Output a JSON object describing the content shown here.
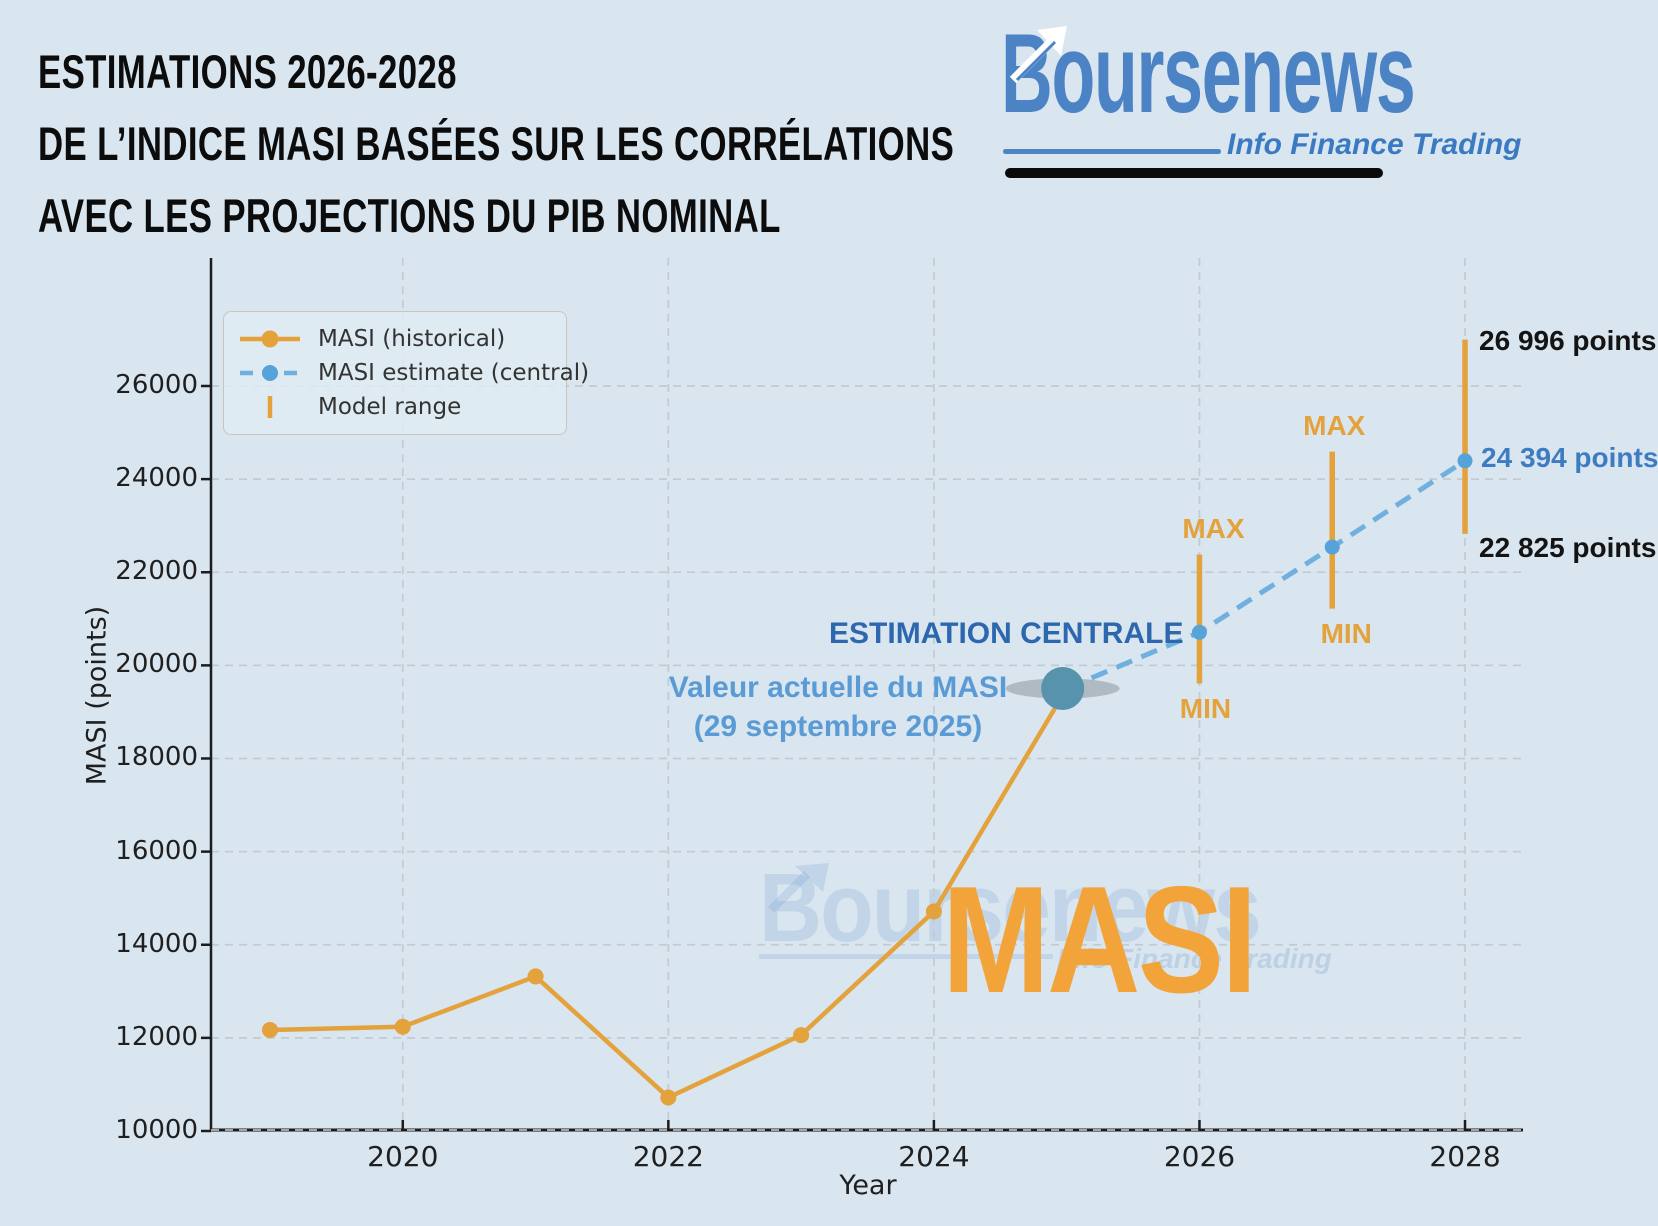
{
  "title": {
    "line1": "ESTIMATIONS 2026-2028",
    "line2": "DE L’INDICE MASI BASÉES SUR LES CORRÉLATIONS",
    "line3": "AVEC LES PROJECTIONS DU PIB NOMINAL"
  },
  "logo": {
    "name": "Boursenews",
    "tagline": "Info Finance Trading"
  },
  "chart_data": {
    "type": "line",
    "xlabel": "Year",
    "ylabel": "MASI (points)",
    "x_ticks": [
      2020,
      2022,
      2024,
      2026,
      2028
    ],
    "y_ticks": [
      10000,
      12000,
      14000,
      16000,
      18000,
      20000,
      22000,
      24000,
      26000
    ],
    "xlim": [
      2018.56,
      2028.44
    ],
    "ylim": [
      10000,
      28745
    ],
    "grid": true,
    "legend_position": "upper left",
    "legend_entries": [
      "MASI (historical)",
      "MASI estimate (central)",
      "Model range"
    ],
    "series": [
      {
        "name": "MASI (historical)",
        "style": "solid",
        "x": [
          2019,
          2020,
          2021,
          2022,
          2023,
          2024,
          2025
        ],
        "y": [
          12170,
          12240,
          13320,
          10720,
          12060,
          14715,
          19504
        ]
      },
      {
        "name": "MASI estimate (central)",
        "style": "dashed",
        "x": [
          2025,
          2026,
          2027,
          2028
        ],
        "y": [
          19504,
          20710,
          22540,
          24394
        ]
      }
    ],
    "ranges": [
      {
        "x": 2026,
        "min": 19610,
        "max": 22380
      },
      {
        "x": 2027,
        "min": 21220,
        "max": 24590
      },
      {
        "x": 2028,
        "min": 22825,
        "max": 26996
      }
    ],
    "range_labels": {
      "max": "MAX",
      "min": "MIN"
    },
    "value_labels_2028": {
      "max": "26 996 points",
      "central": "24 394 points",
      "min": "22 825 points"
    },
    "annotations": {
      "estimation_centrale": "ESTIMATION CENTRALE",
      "current_value_line1": "Valeur actuelle du MASI",
      "current_value_line2": "(29 septembre 2025)"
    },
    "current_value_point": {
      "x": 2025,
      "y": 19504
    },
    "watermarks": {
      "masi": "MASI",
      "logo": "Boursenews",
      "tagline": "Info Finance Trading"
    }
  },
  "colors": {
    "background": "#D9E5EF",
    "orange": "#E3A23B",
    "masi_watermark": "#F2A43A",
    "estimate_blue": "#6FB0DE",
    "estimate_dot": "#55A3D9",
    "dark_blue": "#2D68AE",
    "light_blue": "#5B9BD5",
    "teal": "#5793AC",
    "grid": "#C3CAD1",
    "axis": "#1C1C1C",
    "logo_blue": "#4B83C5"
  }
}
